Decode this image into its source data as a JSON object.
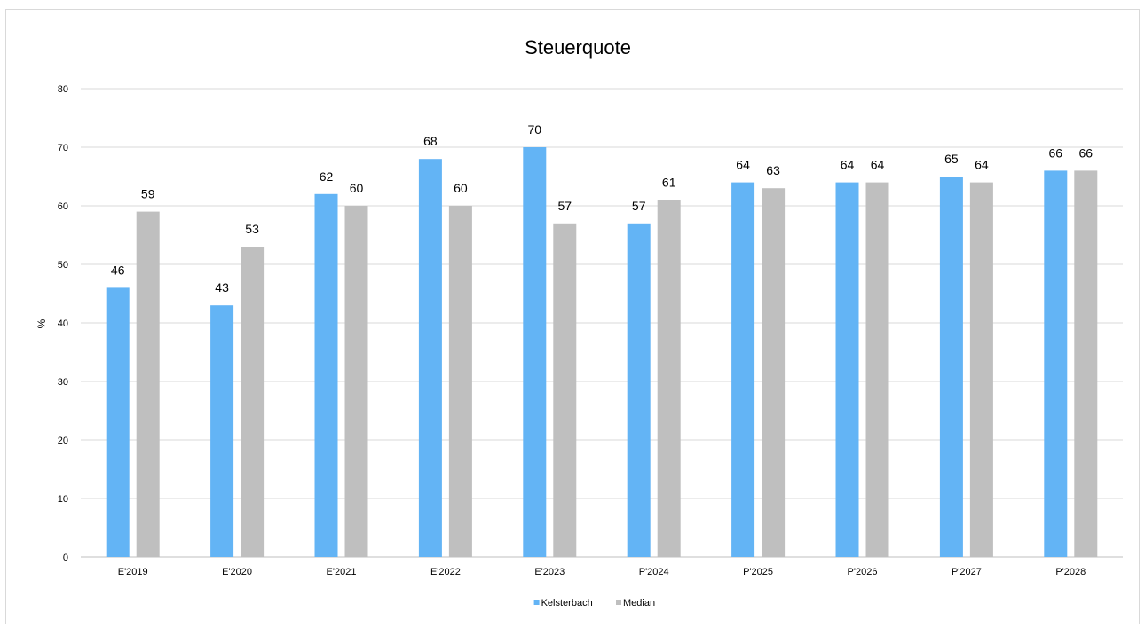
{
  "chart_data": {
    "type": "bar",
    "title": "Steuerquote",
    "xlabel": "",
    "ylabel": "%",
    "ylim": [
      0,
      80
    ],
    "yticks": [
      0,
      10,
      20,
      30,
      40,
      50,
      60,
      70,
      80
    ],
    "grid": true,
    "legend_position": "bottom",
    "categories": [
      "E'2019",
      "E'2020",
      "E'2021",
      "E'2022",
      "E'2023",
      "P'2024",
      "P'2025",
      "P'2026",
      "P'2027",
      "P'2028"
    ],
    "series": [
      {
        "name": "Kelsterbach",
        "color": "#63b4f5",
        "values": [
          46,
          43,
          62,
          68,
          70,
          57,
          64,
          64,
          65,
          66
        ]
      },
      {
        "name": "Median",
        "color": "#bfbfbf",
        "values": [
          59,
          53,
          60,
          60,
          57,
          61,
          63,
          64,
          64,
          66
        ]
      }
    ],
    "data_labels": true
  }
}
